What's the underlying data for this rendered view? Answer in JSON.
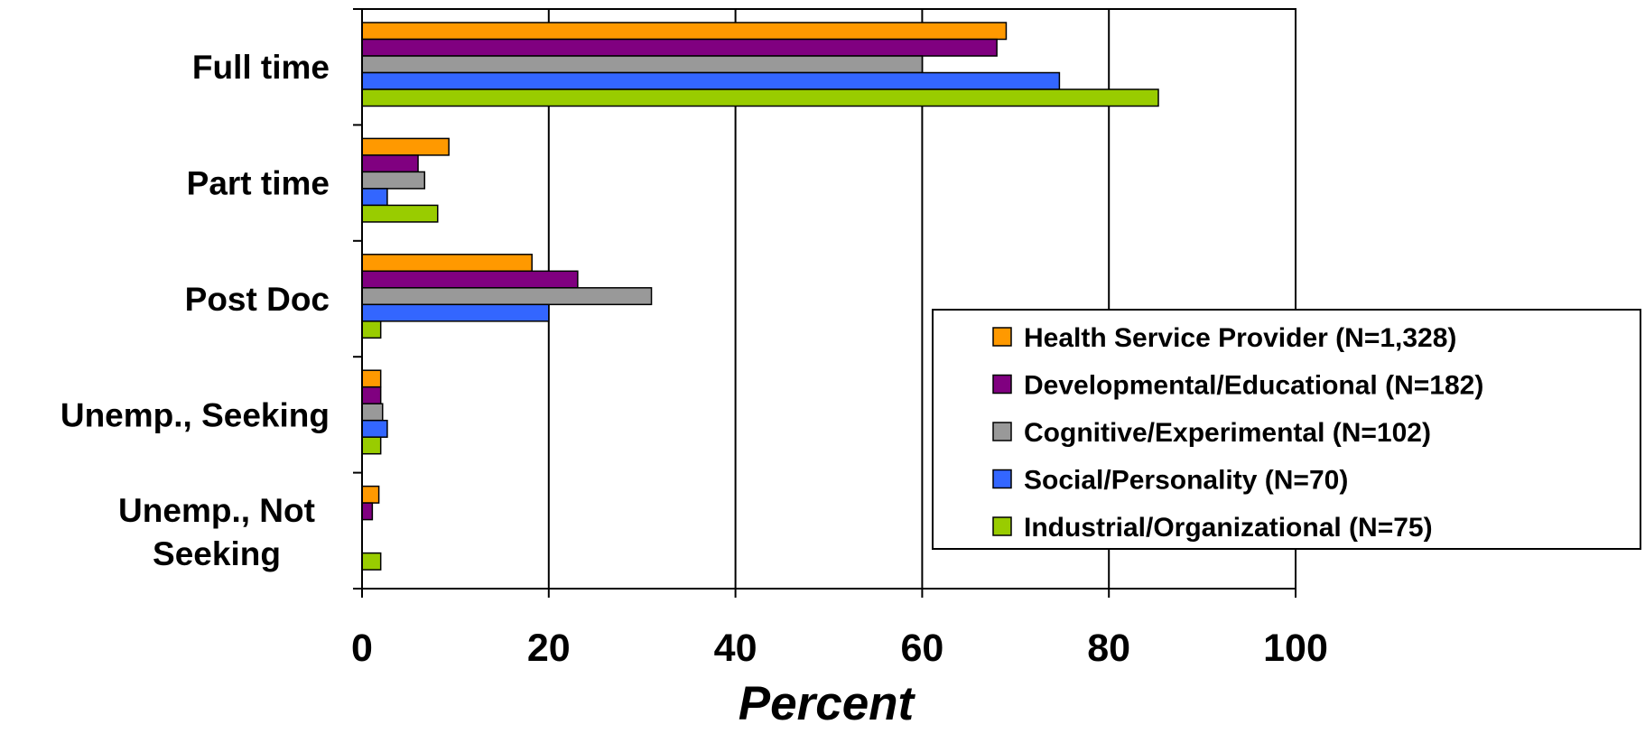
{
  "chart_data": {
    "type": "bar",
    "orientation": "horizontal",
    "categories": [
      "Full time",
      "Part time",
      "Post Doc",
      "Unemp., Seeking",
      "Unemp., Not Seeking"
    ],
    "series": [
      {
        "name": "Health Service Provider (N=1,328)",
        "color": "#FF9900",
        "values": [
          69,
          9.3,
          18.2,
          2,
          1.8
        ]
      },
      {
        "name": "Developmental/Educational (N=182)",
        "color": "#800080",
        "values": [
          68,
          6,
          23.1,
          2,
          1.1
        ]
      },
      {
        "name": "Cognitive/Experimental (N=102)",
        "color": "#999999",
        "values": [
          60,
          6.7,
          31,
          2.2,
          0
        ]
      },
      {
        "name": "Social/Personality (N=70)",
        "color": "#3366FF",
        "values": [
          74.7,
          2.7,
          20,
          2.7,
          0
        ]
      },
      {
        "name": "Industrial/Organizational (N=75)",
        "color": "#99CC00",
        "values": [
          85.3,
          8.1,
          2,
          2,
          2
        ]
      }
    ],
    "xlabel": "Percent",
    "ylabel": "",
    "xlim": [
      0,
      100
    ],
    "xticks": [
      "0",
      "20",
      "40",
      "60",
      "80",
      "100"
    ],
    "grid": "vertical",
    "legend": "right"
  }
}
